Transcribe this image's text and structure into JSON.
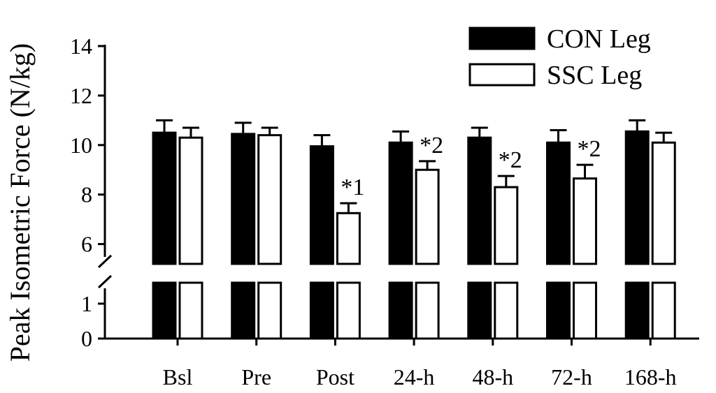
{
  "chart_data": {
    "type": "bar",
    "ylabel": "Peak Isometric Force (N/kg)",
    "categories": [
      "Bsl",
      "Pre",
      "Post",
      "24-h",
      "48-h",
      "72-h",
      "168-h"
    ],
    "series": [
      {
        "name": "CON Leg",
        "color": "#000000",
        "values": [
          10.5,
          10.45,
          9.95,
          10.1,
          10.3,
          10.1,
          10.55
        ],
        "errors": [
          0.5,
          0.45,
          0.45,
          0.45,
          0.4,
          0.5,
          0.45
        ]
      },
      {
        "name": "SSC Leg",
        "color": "#ffffff",
        "values": [
          10.3,
          10.4,
          7.25,
          9.0,
          8.3,
          8.65,
          10.1
        ],
        "errors": [
          0.4,
          0.3,
          0.4,
          0.35,
          0.45,
          0.55,
          0.4
        ]
      }
    ],
    "annotations": [
      "",
      "",
      "*1",
      "*2",
      "*2",
      "*2",
      ""
    ],
    "ylim_upper": [
      5.2,
      14
    ],
    "ylim_lower": [
      0,
      1.6
    ],
    "yticks_upper": [
      "6",
      "8",
      "10",
      "12",
      "14"
    ],
    "yticks_lower": [
      "0",
      "1"
    ],
    "axis_break": true,
    "legend_position": "top-right",
    "grid": false
  }
}
